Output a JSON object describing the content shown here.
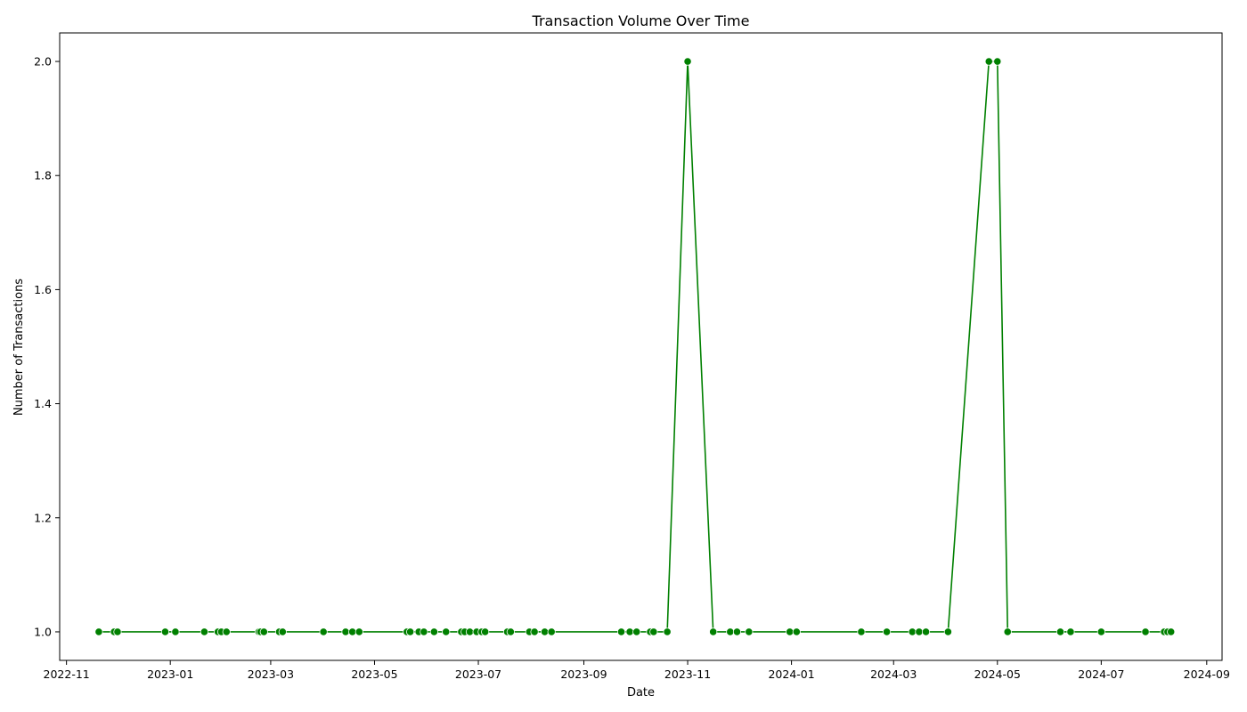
{
  "chart_data": {
    "type": "line",
    "title": "Transaction Volume Over Time",
    "xlabel": "Date",
    "ylabel": "Number of Transactions",
    "xlim": [
      "2022-10-28",
      "2024-09-10"
    ],
    "ylim": [
      0.95,
      2.05
    ],
    "grid": false,
    "legend": false,
    "x_ticks": [
      "2022-11",
      "2023-01",
      "2023-03",
      "2023-05",
      "2023-07",
      "2023-09",
      "2023-11",
      "2024-01",
      "2024-03",
      "2024-05",
      "2024-07",
      "2024-09"
    ],
    "y_ticks": [
      "1.0",
      "1.2",
      "1.4",
      "1.6",
      "1.8",
      "2.0"
    ],
    "series": [
      {
        "color": "#008000",
        "marker": "circle",
        "points": [
          [
            "2022-11-20",
            1
          ],
          [
            "2022-11-29",
            1
          ],
          [
            "2022-12-01",
            1
          ],
          [
            "2022-12-29",
            1
          ],
          [
            "2023-01-04",
            1
          ],
          [
            "2023-01-21",
            1
          ],
          [
            "2023-01-29",
            1
          ],
          [
            "2023-01-31",
            1
          ],
          [
            "2023-02-03",
            1
          ],
          [
            "2023-02-22",
            1
          ],
          [
            "2023-02-23",
            1
          ],
          [
            "2023-02-25",
            1
          ],
          [
            "2023-03-06",
            1
          ],
          [
            "2023-03-08",
            1
          ],
          [
            "2023-04-01",
            1
          ],
          [
            "2023-04-14",
            1
          ],
          [
            "2023-04-18",
            1
          ],
          [
            "2023-04-22",
            1
          ],
          [
            "2023-05-20",
            1
          ],
          [
            "2023-05-22",
            1
          ],
          [
            "2023-05-27",
            1
          ],
          [
            "2023-05-30",
            1
          ],
          [
            "2023-06-05",
            1
          ],
          [
            "2023-06-12",
            1
          ],
          [
            "2023-06-21",
            1
          ],
          [
            "2023-06-23",
            1
          ],
          [
            "2023-06-26",
            1
          ],
          [
            "2023-06-30",
            1
          ],
          [
            "2023-07-03",
            1
          ],
          [
            "2023-07-05",
            1
          ],
          [
            "2023-07-18",
            1
          ],
          [
            "2023-07-20",
            1
          ],
          [
            "2023-07-31",
            1
          ],
          [
            "2023-08-03",
            1
          ],
          [
            "2023-08-09",
            1
          ],
          [
            "2023-08-13",
            1
          ],
          [
            "2023-09-23",
            1
          ],
          [
            "2023-09-28",
            1
          ],
          [
            "2023-10-02",
            1
          ],
          [
            "2023-10-10",
            1
          ],
          [
            "2023-10-12",
            1
          ],
          [
            "2023-10-20",
            1
          ],
          [
            "2023-11-01",
            2
          ],
          [
            "2023-11-16",
            1
          ],
          [
            "2023-11-26",
            1
          ],
          [
            "2023-11-30",
            1
          ],
          [
            "2023-12-07",
            1
          ],
          [
            "2023-12-31",
            1
          ],
          [
            "2024-01-04",
            1
          ],
          [
            "2024-02-11",
            1
          ],
          [
            "2024-02-26",
            1
          ],
          [
            "2024-03-12",
            1
          ],
          [
            "2024-03-16",
            1
          ],
          [
            "2024-03-20",
            1
          ],
          [
            "2024-04-02",
            1
          ],
          [
            "2024-04-26",
            2
          ],
          [
            "2024-05-01",
            2
          ],
          [
            "2024-05-07",
            1
          ],
          [
            "2024-06-07",
            1
          ],
          [
            "2024-06-13",
            1
          ],
          [
            "2024-07-01",
            1
          ],
          [
            "2024-07-27",
            1
          ],
          [
            "2024-08-07",
            1
          ],
          [
            "2024-08-09",
            1
          ],
          [
            "2024-08-11",
            1
          ]
        ]
      }
    ]
  }
}
